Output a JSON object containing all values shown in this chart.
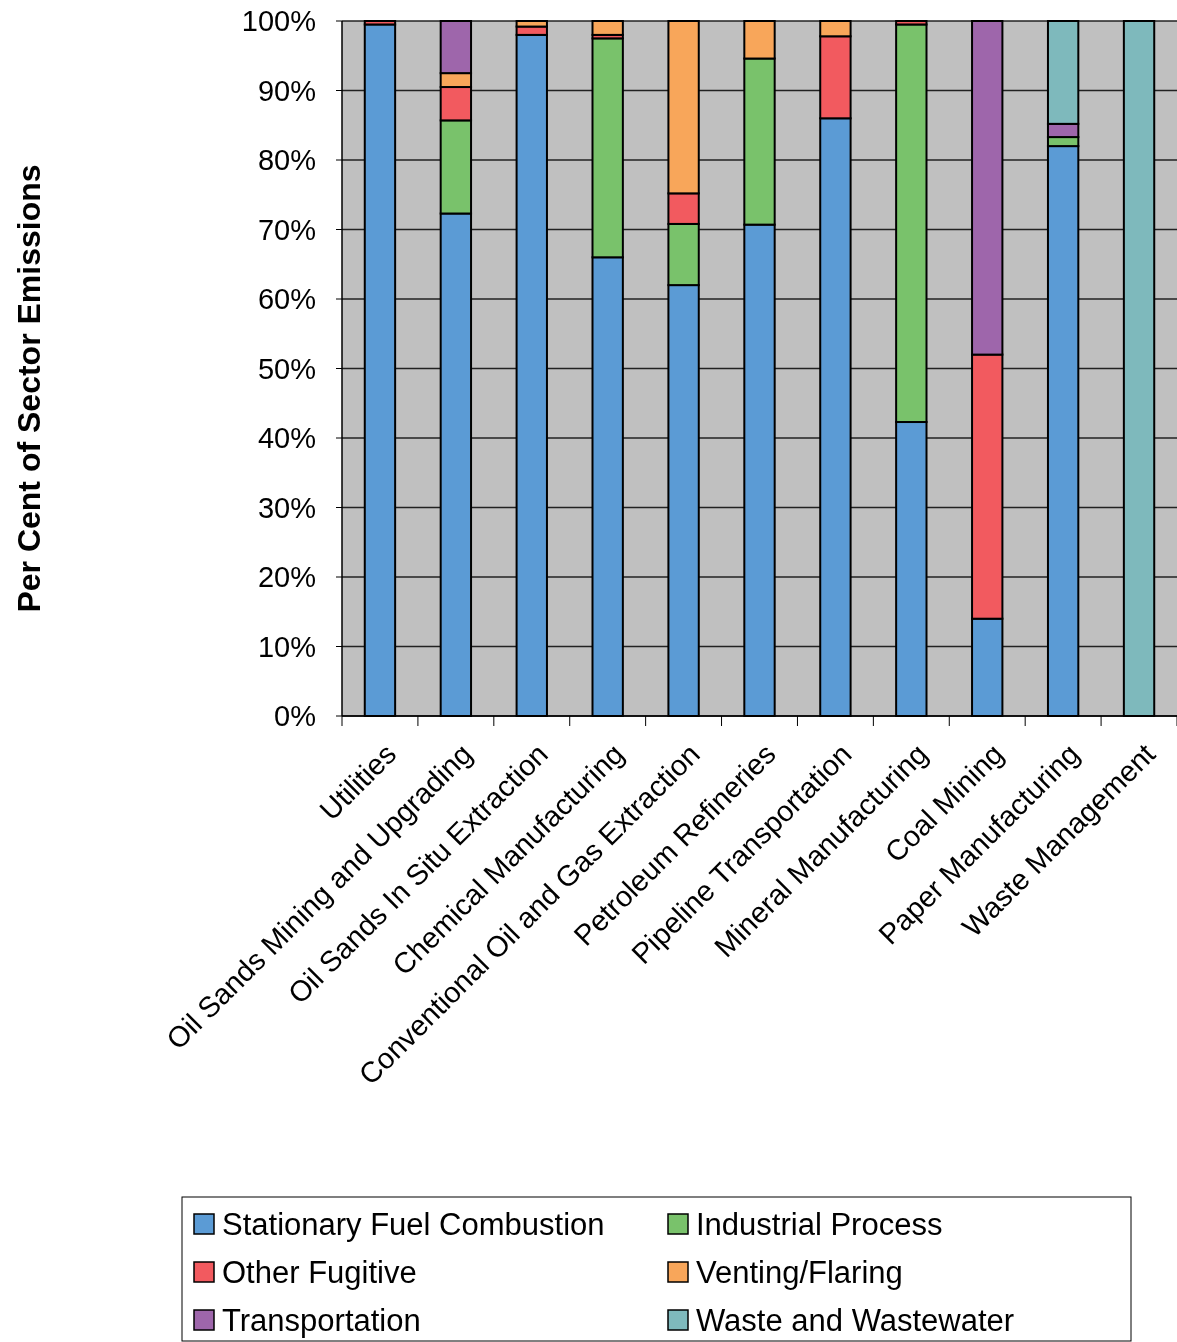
{
  "chart_data": {
    "type": "bar",
    "stacked": true,
    "ylabel": "Per Cent of Sector Emissions",
    "categories": [
      "Utilities",
      "Oil Sands Mining and Upgrading",
      "Oil Sands In Situ Extraction",
      "Chemical Manufacturing",
      "Conventional Oil and Gas Extraction",
      "Petroleum Refineries",
      "Pipeline Transportation",
      "Mineral Manufacturing",
      "Coal Mining",
      "Paper Manufacturing",
      "Waste Management"
    ],
    "series": [
      {
        "name": "Stationary Fuel Combustion",
        "color": "#5b9bd5",
        "values": [
          99.5,
          72.3,
          98,
          66,
          62,
          70.7,
          86,
          42.3,
          14,
          82,
          0
        ]
      },
      {
        "name": "Industrial Process",
        "color": "#79c26b",
        "values": [
          0,
          13.4,
          0,
          31.5,
          8.8,
          23.9,
          0,
          57.2,
          0,
          1.3,
          0
        ]
      },
      {
        "name": "Other Fugitive",
        "color": "#f25a5f",
        "values": [
          0.5,
          4.8,
          1.2,
          0.5,
          4.4,
          0,
          11.8,
          0.5,
          38,
          0,
          0
        ]
      },
      {
        "name": "Venting/Flaring",
        "color": "#f8a65a",
        "values": [
          0,
          2,
          0.8,
          2,
          24.8,
          5.4,
          2.2,
          0,
          0,
          0,
          0
        ]
      },
      {
        "name": "Transportation",
        "color": "#9e66ab",
        "values": [
          0,
          7.5,
          0,
          0,
          0,
          0,
          0,
          0,
          48,
          1.9,
          0
        ]
      },
      {
        "name": "Waste and Wastewater",
        "color": "#7eb9bc",
        "values": [
          0,
          0,
          0,
          0,
          0,
          0,
          0,
          0,
          0,
          14.8,
          100
        ]
      }
    ],
    "ylim": [
      0,
      100
    ],
    "yticks": [
      {
        "value": 0,
        "label": "0%"
      },
      {
        "value": 10,
        "label": "10%"
      },
      {
        "value": 20,
        "label": "20%"
      },
      {
        "value": 30,
        "label": "30%"
      },
      {
        "value": 40,
        "label": "40%"
      },
      {
        "value": 50,
        "label": "50%"
      },
      {
        "value": 60,
        "label": "60%"
      },
      {
        "value": 70,
        "label": "70%"
      },
      {
        "value": 80,
        "label": "80%"
      },
      {
        "value": 90,
        "label": "90%"
      },
      {
        "value": 100,
        "label": "100%"
      }
    ],
    "grid": "y",
    "legend": "bottom"
  }
}
